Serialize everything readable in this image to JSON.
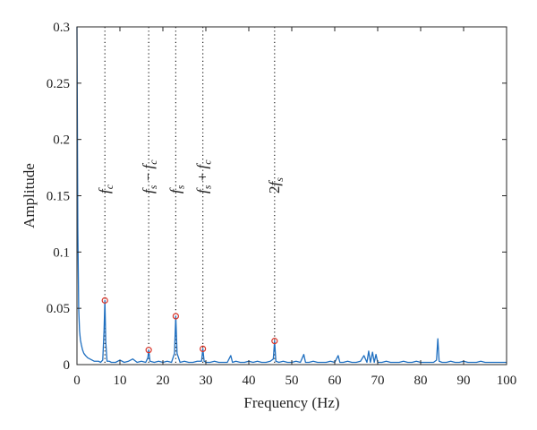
{
  "chart_data": {
    "type": "line",
    "title": "",
    "xlabel": "Frequency (Hz)",
    "ylabel": "Amplitude",
    "xlim": [
      0,
      100
    ],
    "ylim": [
      0,
      0.3
    ],
    "xticks": [
      0,
      10,
      20,
      30,
      40,
      50,
      60,
      70,
      80,
      90,
      100
    ],
    "yticks": [
      0,
      0.05,
      0.1,
      0.15,
      0.2,
      0.25,
      0.3
    ],
    "xtick_labels": [
      "0",
      "10",
      "20",
      "30",
      "40",
      "50",
      "60",
      "70",
      "80",
      "90",
      "100"
    ],
    "ytick_labels": [
      "0",
      "0.05",
      "0.1",
      "0.15",
      "0.2",
      "0.25",
      "0.3"
    ],
    "grid": false,
    "line_color": "#1f6fc0",
    "marker_color": "#d9362b",
    "series": [
      {
        "x": [
          0,
          0.2,
          0.4,
          0.6,
          0.8,
          1.0,
          1.3,
          1.6,
          2.0,
          2.5,
          3.0,
          3.5,
          4.0,
          4.5,
          5.0,
          5.5,
          6.0,
          6.3,
          6.5,
          6.7,
          7.0,
          7.5,
          8.0,
          9.0,
          10.0,
          11.0,
          12.0,
          13.0,
          14.0,
          15.0,
          16.0,
          16.5,
          16.7,
          17.0,
          18.0,
          19.0,
          20.0,
          21.0,
          22.0,
          22.7,
          23.0,
          23.3,
          24.0,
          25.0,
          26.0,
          27.0,
          28.0,
          29.0,
          29.3,
          29.6,
          30.0,
          31.0,
          32.0,
          33.0,
          34.0,
          35.0,
          35.8,
          36.2,
          37.0,
          38.0,
          39.0,
          40.0,
          41.0,
          42.0,
          43.0,
          44.0,
          45.0,
          45.7,
          46.0,
          46.3,
          47.0,
          48.0,
          49.0,
          50.0,
          51.0,
          52.0,
          52.8,
          53.2,
          54.0,
          55.0,
          56.0,
          57.0,
          58.0,
          59.0,
          60.0,
          60.8,
          61.2,
          62.0,
          63.0,
          64.0,
          65.0,
          66.0,
          66.8,
          67.5,
          67.9,
          68.3,
          68.8,
          69.2,
          69.6,
          70.0,
          71.0,
          72.0,
          73.0,
          74.0,
          75.0,
          76.0,
          77.0,
          78.0,
          79.0,
          80.0,
          81.0,
          82.0,
          83.0,
          83.7,
          84.0,
          84.3,
          85.0,
          86.0,
          87.0,
          88.0,
          89.0,
          90.0,
          91.0,
          92.0,
          93.0,
          94.0,
          95.0,
          96.0,
          97.0,
          98.0,
          99.0,
          100.0
        ],
        "y": [
          0.3,
          0.12,
          0.05,
          0.03,
          0.022,
          0.018,
          0.013,
          0.01,
          0.008,
          0.006,
          0.005,
          0.004,
          0.003,
          0.003,
          0.003,
          0.002,
          0.004,
          0.03,
          0.057,
          0.02,
          0.003,
          0.003,
          0.002,
          0.002,
          0.004,
          0.002,
          0.003,
          0.005,
          0.002,
          0.003,
          0.002,
          0.006,
          0.013,
          0.003,
          0.002,
          0.003,
          0.002,
          0.003,
          0.002,
          0.01,
          0.043,
          0.01,
          0.002,
          0.003,
          0.002,
          0.002,
          0.003,
          0.003,
          0.014,
          0.003,
          0.002,
          0.002,
          0.003,
          0.002,
          0.002,
          0.002,
          0.008,
          0.002,
          0.003,
          0.002,
          0.002,
          0.003,
          0.002,
          0.003,
          0.002,
          0.002,
          0.003,
          0.005,
          0.021,
          0.003,
          0.002,
          0.003,
          0.002,
          0.002,
          0.003,
          0.002,
          0.009,
          0.002,
          0.002,
          0.003,
          0.002,
          0.002,
          0.002,
          0.003,
          0.002,
          0.008,
          0.002,
          0.002,
          0.003,
          0.002,
          0.002,
          0.003,
          0.008,
          0.002,
          0.012,
          0.002,
          0.011,
          0.002,
          0.009,
          0.002,
          0.002,
          0.003,
          0.002,
          0.002,
          0.002,
          0.003,
          0.002,
          0.002,
          0.003,
          0.002,
          0.002,
          0.002,
          0.002,
          0.004,
          0.023,
          0.003,
          0.002,
          0.002,
          0.003,
          0.002,
          0.002,
          0.003,
          0.002,
          0.002,
          0.002,
          0.003,
          0.002,
          0.002,
          0.002,
          0.002,
          0.002,
          0.002
        ]
      }
    ],
    "peaks": [
      {
        "x": 6.5,
        "y": 0.057
      },
      {
        "x": 16.7,
        "y": 0.013
      },
      {
        "x": 23.0,
        "y": 0.043
      },
      {
        "x": 29.3,
        "y": 0.014
      },
      {
        "x": 46.0,
        "y": 0.021
      }
    ],
    "annotations": [
      {
        "x": 6.5,
        "parts": [
          {
            "t": "f",
            "k": "it"
          },
          {
            "t": "c",
            "k": "sub"
          }
        ]
      },
      {
        "x": 16.7,
        "parts": [
          {
            "t": "f",
            "k": "it"
          },
          {
            "t": "s",
            "k": "sub"
          },
          {
            "t": " − ",
            "k": "op"
          },
          {
            "t": "f",
            "k": "it"
          },
          {
            "t": "c",
            "k": "sub"
          }
        ]
      },
      {
        "x": 23.0,
        "parts": [
          {
            "t": "f",
            "k": "it"
          },
          {
            "t": "s",
            "k": "sub"
          }
        ]
      },
      {
        "x": 29.3,
        "parts": [
          {
            "t": "f",
            "k": "it"
          },
          {
            "t": "s",
            "k": "sub"
          },
          {
            "t": " + ",
            "k": "op"
          },
          {
            "t": "f",
            "k": "it"
          },
          {
            "t": "c",
            "k": "sub"
          }
        ]
      },
      {
        "x": 46.0,
        "parts": [
          {
            "t": "2",
            "k": "op"
          },
          {
            "t": "f",
            "k": "it"
          },
          {
            "t": "s",
            "k": "sub"
          }
        ]
      }
    ]
  }
}
